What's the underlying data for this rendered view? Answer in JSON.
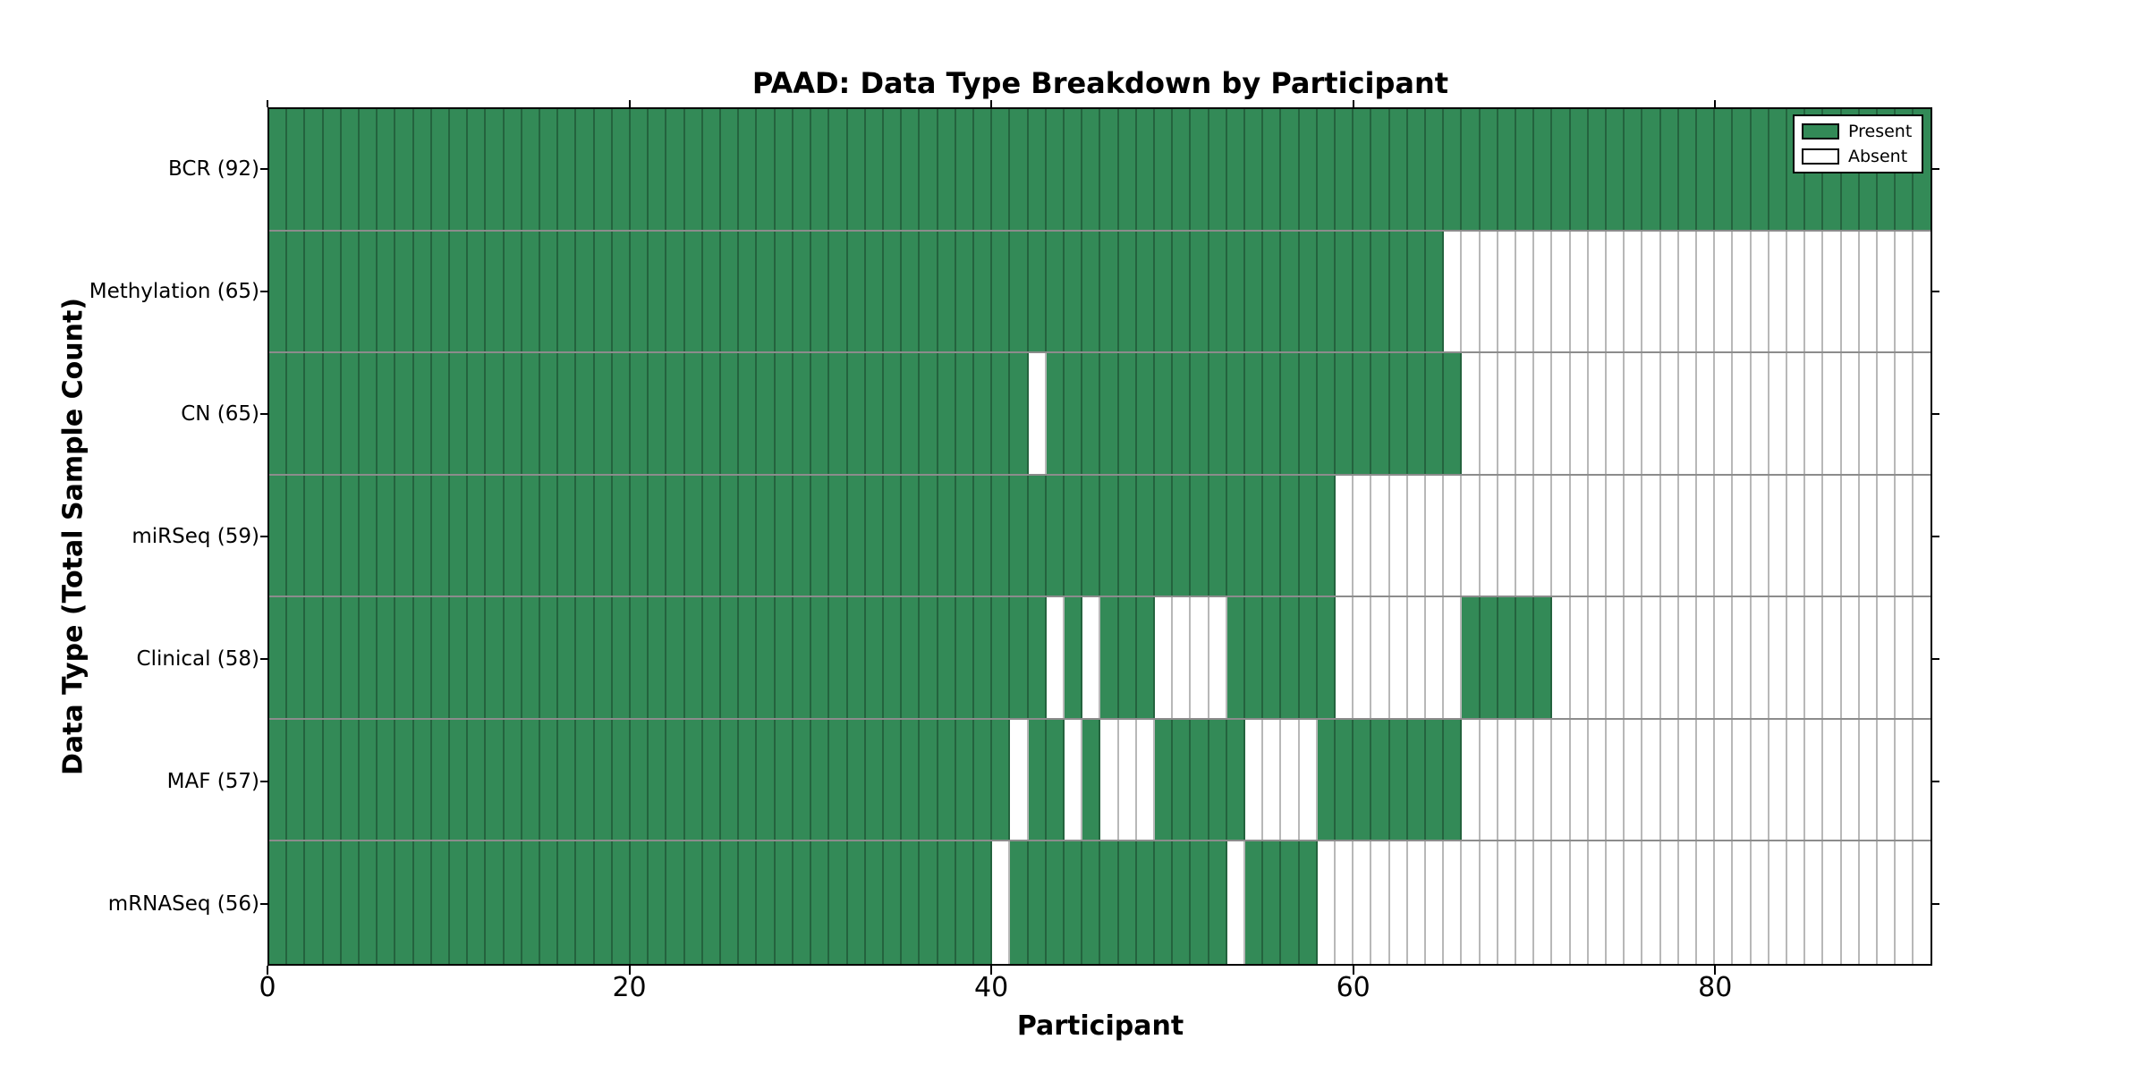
{
  "chart_data": {
    "type": "heatmap",
    "title": "PAAD: Data Type Breakdown by Participant",
    "xlabel": "Participant",
    "ylabel": "Data Type (Total Sample Count)",
    "x_ticks": [
      0,
      20,
      40,
      60,
      80
    ],
    "n_participants": 92,
    "grid": true,
    "legend_position": "upper right",
    "colors": {
      "present": "#338a57",
      "absent": "#ffffff",
      "gridline": "rgba(0,0,0,0.28)",
      "row_divider": "rgba(0,0,0,0.45)",
      "frame": "#000000"
    },
    "legend": {
      "items": [
        {
          "label": "Present",
          "color": "#338a57"
        },
        {
          "label": "Absent",
          "color": "#ffffff"
        }
      ]
    },
    "rows": [
      {
        "label": "BCR (92)",
        "data_type": "BCR",
        "total": 92,
        "present_ranges": [
          [
            0,
            91
          ]
        ]
      },
      {
        "label": "Methylation (65)",
        "data_type": "Methylation",
        "total": 65,
        "present_ranges": [
          [
            0,
            64
          ]
        ]
      },
      {
        "label": "CN (65)",
        "data_type": "CN",
        "total": 65,
        "present_ranges": [
          [
            0,
            41
          ],
          [
            43,
            65
          ]
        ]
      },
      {
        "label": "miRSeq (59)",
        "data_type": "miRSeq",
        "total": 59,
        "present_ranges": [
          [
            0,
            58
          ]
        ]
      },
      {
        "label": "Clinical (58)",
        "data_type": "Clinical",
        "total": 58,
        "present_ranges": [
          [
            0,
            42
          ],
          [
            44,
            44
          ],
          [
            46,
            48
          ],
          [
            53,
            58
          ],
          [
            66,
            70
          ]
        ]
      },
      {
        "label": "MAF (57)",
        "data_type": "MAF",
        "total": 57,
        "present_ranges": [
          [
            0,
            40
          ],
          [
            42,
            43
          ],
          [
            45,
            45
          ],
          [
            49,
            53
          ],
          [
            58,
            65
          ]
        ]
      },
      {
        "label": "mRNASeq (56)",
        "data_type": "mRNASeq",
        "total": 56,
        "present_ranges": [
          [
            0,
            39
          ],
          [
            41,
            52
          ],
          [
            54,
            57
          ]
        ]
      }
    ]
  }
}
